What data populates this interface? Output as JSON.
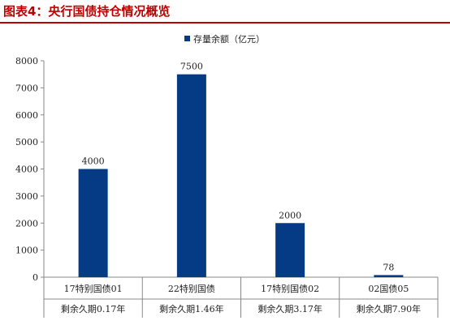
{
  "figure_title": "图表4：央行国债持仓情况概览",
  "colors": {
    "bar": "#053A85",
    "title": "#C00000",
    "axis": "#888888"
  },
  "chart_data": {
    "type": "bar",
    "categories": [
      [
        "17特别国债01",
        "剩余久期0.17年"
      ],
      [
        "22特别国债",
        "剩余久期1.46年"
      ],
      [
        "17特别国债02",
        "剩余久期3.17年"
      ],
      [
        "02国债05",
        "剩余久期7.90年"
      ]
    ],
    "series": [
      {
        "name": "存量余额（亿元）",
        "values": [
          4000,
          7500,
          2000,
          78
        ]
      }
    ],
    "data_labels": [
      "4000",
      "7500",
      "2000",
      "78"
    ],
    "y_ticks": [
      0,
      1000,
      2000,
      3000,
      4000,
      5000,
      6000,
      7000,
      8000
    ],
    "ylim": [
      0,
      8000
    ],
    "legend_position": "top",
    "grid": false
  }
}
